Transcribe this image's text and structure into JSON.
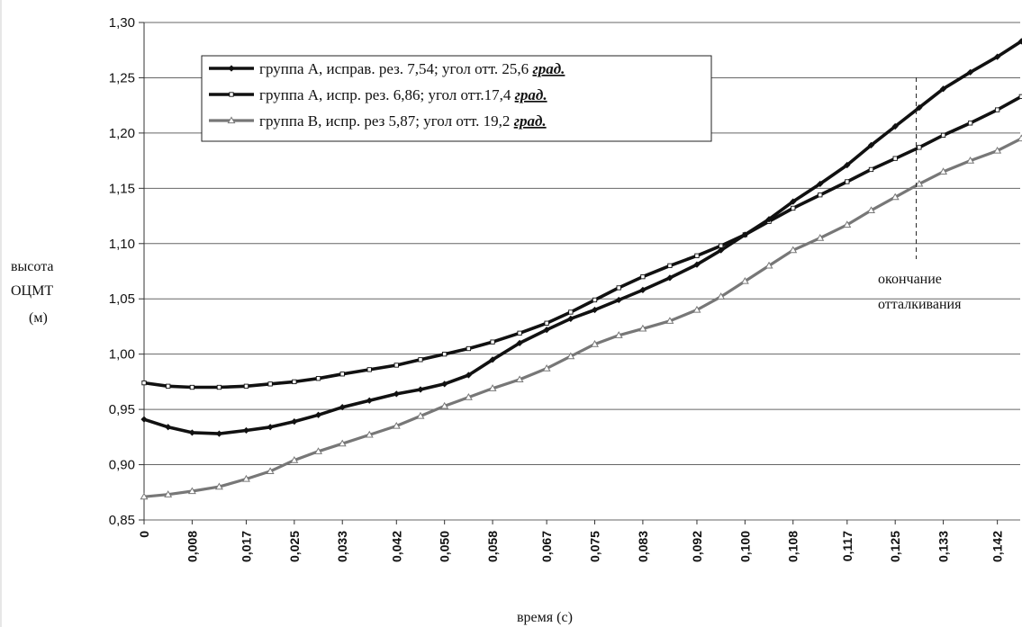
{
  "chart_data": {
    "type": "line",
    "title": "",
    "ylabel": [
      "высота",
      "ОЦМТ",
      "(м)"
    ],
    "xlabel": "время  (с)",
    "ylim": [
      0.85,
      1.3
    ],
    "yticks": [
      "0,85",
      "0,90",
      "0,95",
      "1,00",
      "1,05",
      "1,10",
      "1,15",
      "1,20",
      "1,25",
      "1,30"
    ],
    "x": [
      0,
      0.004,
      0.008,
      0.0125,
      0.017,
      0.021,
      0.025,
      0.029,
      0.033,
      0.0375,
      0.042,
      0.046,
      0.05,
      0.054,
      0.058,
      0.0625,
      0.067,
      0.071,
      0.075,
      0.079,
      0.083,
      0.0875,
      0.092,
      0.096,
      0.1,
      0.104,
      0.108,
      0.1125,
      0.117,
      0.121,
      0.125,
      0.129,
      0.133,
      0.1375,
      0.142,
      0.146
    ],
    "xtick_labels": [
      "0",
      "0,008",
      "0,017",
      "0,025",
      "0,033",
      "0,042",
      "0,050",
      "0,058",
      "0,067",
      "0,075",
      "0,083",
      "0,092",
      "0,100",
      "0,108",
      "0,117",
      "0,125",
      "0,133",
      "0,142"
    ],
    "grid": "horizontal",
    "series": [
      {
        "name": "группа А, исправ. рез. 7,54; угол отт. 25,6",
        "unit_label": "град.",
        "color": "#111111",
        "marker": "diamond",
        "values": [
          0.941,
          0.934,
          0.929,
          0.928,
          0.931,
          0.934,
          0.939,
          0.945,
          0.952,
          0.958,
          0.964,
          0.968,
          0.973,
          0.981,
          0.995,
          1.01,
          1.022,
          1.032,
          1.04,
          1.049,
          1.058,
          1.069,
          1.081,
          1.094,
          1.108,
          1.122,
          1.138,
          1.154,
          1.171,
          1.189,
          1.206,
          1.223,
          1.24,
          1.255,
          1.269,
          1.283
        ]
      },
      {
        "name": "группа А, испр. рез. 6,86; угол отт.17,4",
        "unit_label": "град.",
        "color": "#111111",
        "marker": "square",
        "values": [
          0.974,
          0.971,
          0.97,
          0.97,
          0.971,
          0.973,
          0.975,
          0.978,
          0.982,
          0.986,
          0.99,
          0.995,
          1.0,
          1.005,
          1.011,
          1.019,
          1.028,
          1.038,
          1.049,
          1.06,
          1.07,
          1.08,
          1.089,
          1.098,
          1.108,
          1.12,
          1.132,
          1.144,
          1.156,
          1.167,
          1.177,
          1.187,
          1.198,
          1.209,
          1.221,
          1.233
        ]
      },
      {
        "name": "группа В, испр. рез 5,87; угол отт. 19,2",
        "unit_label": "град.",
        "color": "#777777",
        "marker": "triangle",
        "values": [
          0.871,
          0.873,
          0.876,
          0.88,
          0.887,
          0.894,
          0.904,
          0.912,
          0.919,
          0.927,
          0.935,
          0.944,
          0.953,
          0.961,
          0.969,
          0.977,
          0.987,
          0.998,
          1.009,
          1.017,
          1.023,
          1.03,
          1.04,
          1.052,
          1.066,
          1.08,
          1.094,
          1.105,
          1.117,
          1.13,
          1.142,
          1.154,
          1.165,
          1.175,
          1.184,
          1.195
        ]
      }
    ],
    "annotation": {
      "lines": [
        "окончание",
        "отталкивания"
      ],
      "x": 0.1285
    }
  }
}
